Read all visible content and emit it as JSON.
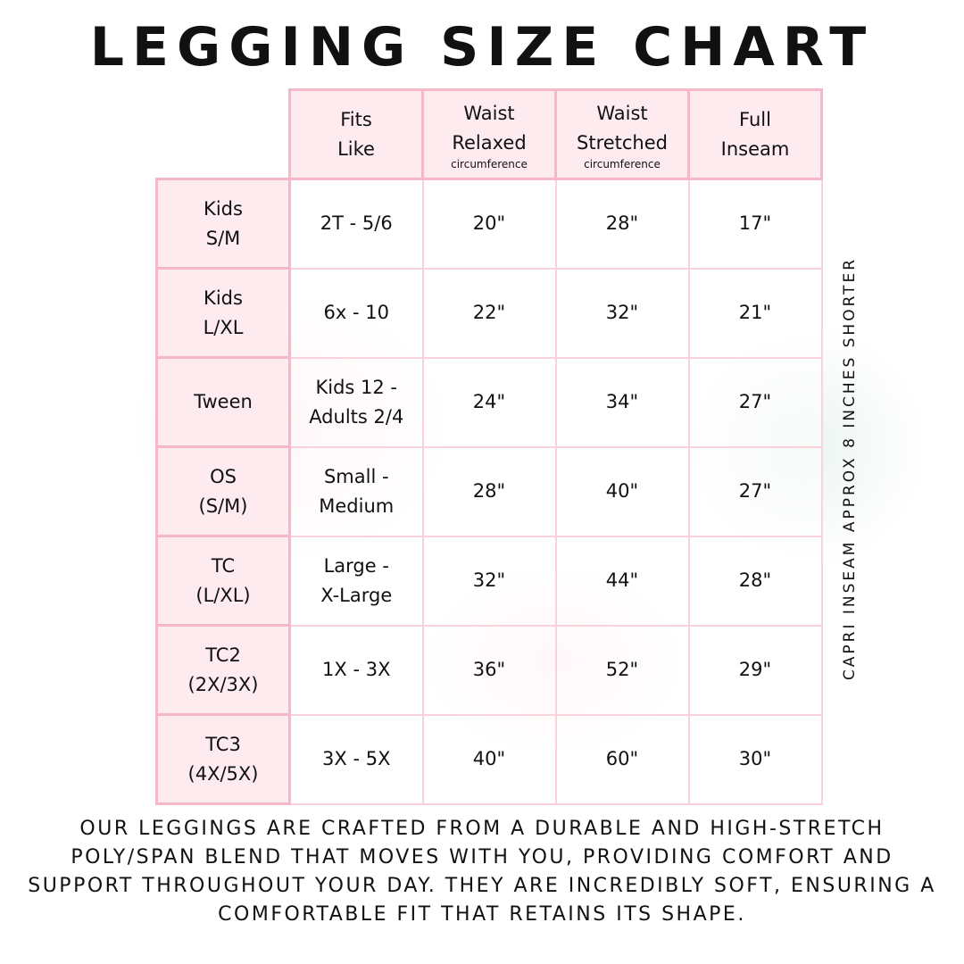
{
  "title": "LEGGING SIZE CHART",
  "table": {
    "headers": [
      {
        "lines": [
          "Fits",
          "Like"
        ],
        "sub": ""
      },
      {
        "lines": [
          "Waist",
          "Relaxed"
        ],
        "sub": "circumference"
      },
      {
        "lines": [
          "Waist",
          "Stretched"
        ],
        "sub": "circumference"
      },
      {
        "lines": [
          "Full",
          "Inseam"
        ],
        "sub": ""
      }
    ],
    "rows": [
      {
        "size": [
          "Kids",
          "S/M"
        ],
        "fits": [
          "2T - 5/6"
        ],
        "relaxed": "20\"",
        "stretched": "28\"",
        "inseam": "17\""
      },
      {
        "size": [
          "Kids",
          "L/XL"
        ],
        "fits": [
          "6x - 10"
        ],
        "relaxed": "22\"",
        "stretched": "32\"",
        "inseam": "21\""
      },
      {
        "size": [
          "Tween"
        ],
        "fits": [
          "Kids 12 -",
          "Adults 2/4"
        ],
        "relaxed": "24\"",
        "stretched": "34\"",
        "inseam": "27\""
      },
      {
        "size": [
          "OS",
          "(S/M)"
        ],
        "fits": [
          "Small -",
          "Medium"
        ],
        "relaxed": "28\"",
        "stretched": "40\"",
        "inseam": "27\""
      },
      {
        "size": [
          "TC",
          "(L/XL)"
        ],
        "fits": [
          "Large -",
          "X-Large"
        ],
        "relaxed": "32\"",
        "stretched": "44\"",
        "inseam": "28\""
      },
      {
        "size": [
          "TC2",
          "(2X/3X)"
        ],
        "fits": [
          "1X - 3X"
        ],
        "relaxed": "36\"",
        "stretched": "52\"",
        "inseam": "29\""
      },
      {
        "size": [
          "TC3",
          "(4X/5X)"
        ],
        "fits": [
          "3X - 5X"
        ],
        "relaxed": "40\"",
        "stretched": "60\"",
        "inseam": "30\""
      }
    ]
  },
  "side_note": "CAPRI INSEAM APPROX 8 INCHES SHORTER",
  "description": "Our leggings are crafted from a durable and high-stretch poly/span blend that moves with you, providing comfort and support throughout your day. They are incredibly soft, ensuring a comfortable fit that retains its shape.",
  "colors": {
    "header_fill": "#fdebf0",
    "header_border": "#f6b7c9",
    "cell_border": "#f9d2dc"
  }
}
